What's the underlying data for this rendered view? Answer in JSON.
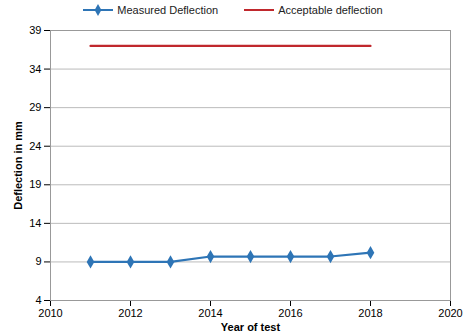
{
  "chart_data": {
    "type": "line",
    "x_label": "Year of test",
    "y_label": "Deflection in mm",
    "x": [
      2011,
      2012,
      2013,
      2014,
      2015,
      2016,
      2017,
      2018
    ],
    "series": [
      {
        "name": "Measured Deflection",
        "color": "#2e75b6",
        "marker": "diamond",
        "line_style": "solid",
        "values": [
          9,
          9,
          9,
          9.7,
          9.7,
          9.7,
          9.7,
          10.2
        ]
      },
      {
        "name": "Acceptable deflection",
        "color": "#c0282d",
        "marker": "none",
        "line_style": "solid",
        "values": [
          37,
          37,
          37,
          37,
          37,
          37,
          37,
          37
        ]
      }
    ],
    "xlim": [
      2010,
      2020
    ],
    "xticks": [
      2010,
      2012,
      2014,
      2016,
      2018,
      2020
    ],
    "ylim": [
      4,
      39
    ],
    "yticks": [
      4,
      9,
      14,
      19,
      24,
      29,
      34,
      39
    ],
    "grid": true,
    "legend": "top"
  }
}
